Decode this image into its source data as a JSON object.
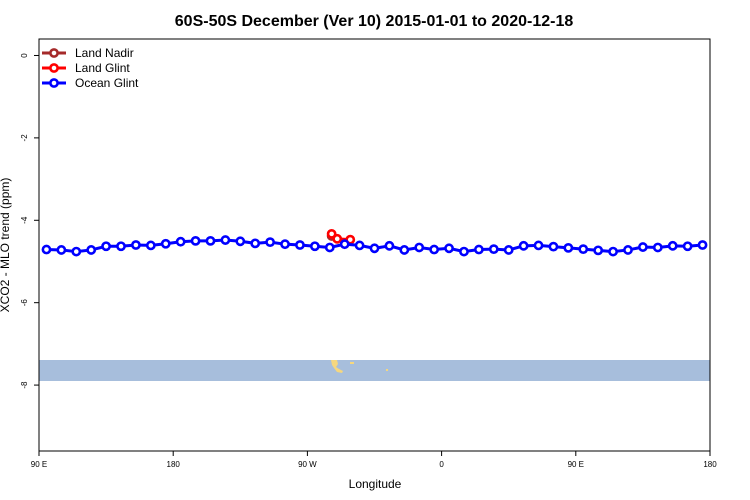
{
  "chart_data": {
    "type": "line",
    "title": "60S-50S December (Ver 10)   2015-01-01 to 2020-12-18",
    "xlabel": "Longitude",
    "ylabel": "XCO2 - MLO trend (ppm)",
    "xlim": [
      90,
      450
    ],
    "ylim": [
      -9.6,
      0.4
    ],
    "x_ticks": [
      {
        "value": 90,
        "label": "90 E"
      },
      {
        "value": 162,
        "label": "180"
      },
      {
        "value": 234,
        "label": "90 W"
      },
      {
        "value": 306,
        "label": "0"
      },
      {
        "value": 378,
        "label": "90 E"
      },
      {
        "value": 450,
        "label": "180"
      }
    ],
    "y_ticks": [
      {
        "value": 0,
        "label": "0"
      },
      {
        "value": -2,
        "label": "-2"
      },
      {
        "value": -4,
        "label": "-4"
      },
      {
        "value": -6,
        "label": "-6"
      },
      {
        "value": -8,
        "label": "-8"
      }
    ],
    "grid": false,
    "legend_position": "top-left",
    "series": [
      {
        "name": "Land Nadir",
        "color": "#a52a2a",
        "x": [
          247
        ],
        "y": [
          -4.38
        ]
      },
      {
        "name": "Land Glint",
        "color": "#ff0000",
        "x": [
          247,
          250,
          257
        ],
        "y": [
          -4.33,
          -4.45,
          -4.47
        ]
      },
      {
        "name": "Ocean Glint",
        "color": "#0000ff",
        "x": [
          94,
          102,
          110,
          118,
          126,
          134,
          142,
          150,
          158,
          166,
          174,
          182,
          190,
          198,
          206,
          214,
          222,
          230,
          238,
          246,
          254,
          262,
          270,
          278,
          286,
          294,
          302,
          310,
          318,
          326,
          334,
          342,
          350,
          358,
          366,
          374,
          382,
          390,
          398,
          406,
          414,
          422,
          430,
          438,
          446
        ],
        "y": [
          -4.71,
          -4.72,
          -4.76,
          -4.72,
          -4.63,
          -4.63,
          -4.6,
          -4.61,
          -4.57,
          -4.52,
          -4.5,
          -4.5,
          -4.48,
          -4.51,
          -4.56,
          -4.53,
          -4.58,
          -4.6,
          -4.63,
          -4.66,
          -4.58,
          -4.61,
          -4.68,
          -4.62,
          -4.72,
          -4.66,
          -4.71,
          -4.68,
          -4.76,
          -4.71,
          -4.7,
          -4.72,
          -4.62,
          -4.61,
          -4.64,
          -4.67,
          -4.7,
          -4.73,
          -4.76,
          -4.72,
          -4.65,
          -4.66,
          -4.62,
          -4.63,
          -4.6
        ]
      }
    ]
  }
}
